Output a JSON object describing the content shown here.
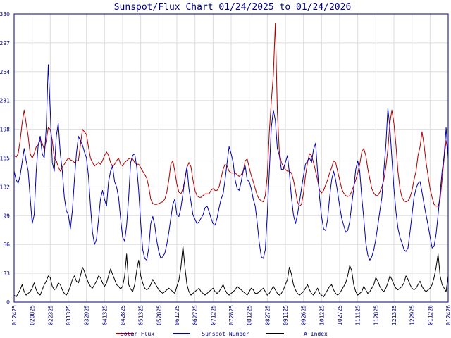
{
  "chart_data": {
    "type": "line",
    "title": "Sunspot/Flux Chart 01/24/2025 to 01/24/2026",
    "ylim": [
      0,
      330
    ],
    "y_ticks": [
      0,
      33,
      66,
      99,
      132,
      165,
      198,
      231,
      264,
      297,
      330
    ],
    "x_ticks": [
      "012425",
      "020825",
      "022325",
      "031325",
      "032925",
      "041325",
      "042825",
      "051325",
      "052825",
      "061225",
      "062725",
      "071225",
      "072825",
      "081225",
      "082725",
      "091125",
      "092625",
      "101225",
      "102725",
      "111125",
      "112825",
      "121325",
      "122925",
      "011226",
      "012426"
    ],
    "grid": true,
    "legend_position": "bottom",
    "colors": {
      "title": "#000080",
      "axis": "#000080",
      "grid": "#dddddd"
    },
    "series": [
      {
        "name": "Solar Flux",
        "color": "#aa0000",
        "values": [
          168,
          166,
          170,
          185,
          205,
          220,
          205,
          190,
          170,
          165,
          170,
          178,
          180,
          186,
          182,
          175,
          185,
          200,
          198,
          185,
          165,
          162,
          155,
          150,
          155,
          158,
          162,
          165,
          163,
          162,
          160,
          162,
          162,
          180,
          198,
          195,
          192,
          178,
          165,
          160,
          156,
          158,
          160,
          158,
          162,
          168,
          172,
          168,
          160,
          155,
          158,
          162,
          165,
          158,
          156,
          160,
          162,
          164,
          165,
          164,
          160,
          158,
          158,
          154,
          150,
          146,
          142,
          132,
          118,
          113,
          112,
          112,
          113,
          114,
          115,
          118,
          126,
          140,
          158,
          162,
          150,
          135,
          126,
          124,
          130,
          140,
          154,
          160,
          155,
          140,
          128,
          122,
          120,
          120,
          122,
          124,
          124,
          124,
          128,
          130,
          128,
          128,
          132,
          142,
          152,
          158,
          156,
          150,
          148,
          148,
          148,
          146,
          144,
          146,
          150,
          162,
          164,
          154,
          145,
          138,
          130,
          122,
          118,
          116,
          115,
          122,
          145,
          195,
          230,
          260,
          320,
          218,
          172,
          160,
          155,
          152,
          150,
          150,
          148,
          140,
          128,
          115,
          110,
          112,
          125,
          145,
          160,
          170,
          168,
          160,
          150,
          140,
          128,
          125,
          128,
          134,
          140,
          148,
          154,
          162,
          160,
          150,
          140,
          130,
          125,
          122,
          121,
          122,
          127,
          133,
          140,
          148,
          158,
          172,
          176,
          168,
          153,
          141,
          130,
          125,
          122,
          122,
          126,
          132,
          140,
          155,
          175,
          205,
          220,
          205,
          180,
          150,
          130,
          120,
          116,
          115,
          116,
          120,
          128,
          140,
          150,
          168,
          178,
          195,
          180,
          160,
          145,
          130,
          120,
          112,
          110,
          110,
          118,
          140,
          165,
          185,
          170
        ],
        "label_x": 195
      },
      {
        "name": "Sunspot Number",
        "color": "#0000aa",
        "values": [
          150,
          140,
          136,
          145,
          160,
          176,
          162,
          150,
          120,
          90,
          100,
          150,
          180,
          190,
          170,
          165,
          200,
          272,
          220,
          160,
          150,
          190,
          205,
          170,
          150,
          120,
          105,
          100,
          84,
          105,
          140,
          170,
          190,
          185,
          180,
          172,
          165,
          145,
          110,
          80,
          66,
          72,
          95,
          118,
          128,
          118,
          110,
          138,
          150,
          156,
          138,
          132,
          120,
          96,
          74,
          70,
          88,
          120,
          160,
          168,
          170,
          155,
          128,
          90,
          60,
          50,
          48,
          62,
          90,
          98,
          88,
          70,
          58,
          50,
          52,
          56,
          66,
          80,
          96,
          112,
          118,
          100,
          98,
          108,
          124,
          142,
          155,
          130,
          115,
          100,
          95,
          90,
          92,
          96,
          100,
          108,
          110,
          104,
          96,
          90,
          88,
          96,
          108,
          118,
          124,
          140,
          160,
          178,
          170,
          160,
          140,
          130,
          128,
          138,
          150,
          156,
          140,
          138,
          130,
          118,
          110,
          90,
          68,
          52,
          50,
          60,
          100,
          150,
          200,
          220,
          208,
          176,
          168,
          152,
          152,
          160,
          168,
          148,
          120,
          100,
          90,
          100,
          115,
          130,
          145,
          158,
          162,
          165,
          160,
          175,
          182,
          150,
          120,
          98,
          84,
          82,
          95,
          120,
          140,
          150,
          140,
          126,
          110,
          96,
          88,
          80,
          82,
          92,
          112,
          130,
          152,
          162,
          150,
          120,
          96,
          68,
          54,
          48,
          52,
          60,
          72,
          88,
          104,
          120,
          150,
          180,
          222,
          200,
          165,
          130,
          104,
          85,
          74,
          68,
          60,
          58,
          62,
          80,
          100,
          120,
          130,
          136,
          138,
          126,
          112,
          100,
          88,
          75,
          62,
          64,
          78,
          100,
          125,
          150,
          168,
          200,
          165
        ],
        "label_x": 320
      },
      {
        "name": "A Index",
        "color": "#000000",
        "values": [
          8,
          6,
          10,
          14,
          20,
          12,
          8,
          10,
          12,
          16,
          22,
          14,
          10,
          8,
          14,
          20,
          24,
          30,
          28,
          18,
          14,
          16,
          22,
          20,
          14,
          10,
          8,
          12,
          18,
          26,
          30,
          24,
          22,
          30,
          40,
          35,
          28,
          22,
          18,
          16,
          20,
          24,
          30,
          28,
          22,
          18,
          22,
          30,
          38,
          32,
          26,
          20,
          18,
          15,
          18,
          30,
          55,
          20,
          15,
          12,
          20,
          36,
          48,
          30,
          22,
          16,
          14,
          16,
          20,
          26,
          22,
          18,
          14,
          12,
          10,
          12,
          14,
          16,
          14,
          12,
          10,
          18,
          25,
          40,
          64,
          40,
          20,
          12,
          8,
          10,
          12,
          14,
          16,
          12,
          10,
          8,
          10,
          12,
          14,
          16,
          12,
          10,
          12,
          16,
          20,
          14,
          10,
          8,
          10,
          12,
          14,
          18,
          16,
          14,
          12,
          10,
          8,
          12,
          16,
          14,
          10,
          10,
          12,
          14,
          16,
          12,
          8,
          10,
          14,
          18,
          14,
          10,
          8,
          10,
          14,
          20,
          26,
          40,
          32,
          20,
          14,
          10,
          8,
          10,
          12,
          16,
          20,
          14,
          10,
          8,
          12,
          16,
          10,
          8,
          6,
          10,
          14,
          18,
          20,
          14,
          10,
          8,
          10,
          14,
          18,
          22,
          30,
          42,
          36,
          20,
          12,
          8,
          10,
          12,
          18,
          14,
          10,
          12,
          16,
          20,
          28,
          24,
          18,
          14,
          12,
          16,
          22,
          30,
          26,
          20,
          16,
          14,
          16,
          18,
          22,
          30,
          26,
          20,
          16,
          14,
          16,
          20,
          24,
          18,
          14,
          12,
          14,
          16,
          20,
          28,
          40,
          55,
          30,
          20,
          16,
          12,
          30
        ],
        "label_x": 448
      }
    ]
  }
}
